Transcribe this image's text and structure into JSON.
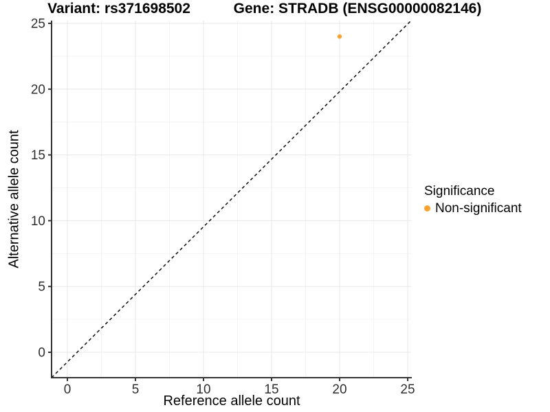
{
  "figure": {
    "title_variant": "Variant: rs371698502",
    "title_gene": "Gene: STRADB (ENSG00000082146)"
  },
  "legend": {
    "title": "Significance",
    "items": [
      {
        "label": "Non-significant",
        "color": "#F8A232"
      }
    ]
  },
  "chart_data": {
    "type": "scatter",
    "xlabel": "Reference allele count",
    "ylabel": "Alternative allele count",
    "x_ticks": [
      0,
      5,
      10,
      15,
      20,
      25
    ],
    "y_ticks": [
      0,
      5,
      10,
      15,
      20,
      25
    ],
    "xlim": [
      -1.2,
      25.3
    ],
    "ylim": [
      -1.9,
      25.2
    ],
    "grid": "major and minor, light gray on white panel",
    "legend_position": "right",
    "series": [
      {
        "name": "Non-significant",
        "color": "#F8A232",
        "points": [
          {
            "x": 20,
            "y": 24
          }
        ]
      }
    ],
    "reference_line": {
      "type": "identity",
      "slope": 1,
      "intercept": 0,
      "linetype": "dashed",
      "color": "#0a0a0a"
    }
  },
  "colors": {
    "background": "#FFFFFF",
    "grid_major": "#E7E7E7",
    "grid_minor": "#F3F3F3",
    "axis_line": "#333333",
    "tick_text": "#2E2E2E",
    "text": "#000000"
  }
}
